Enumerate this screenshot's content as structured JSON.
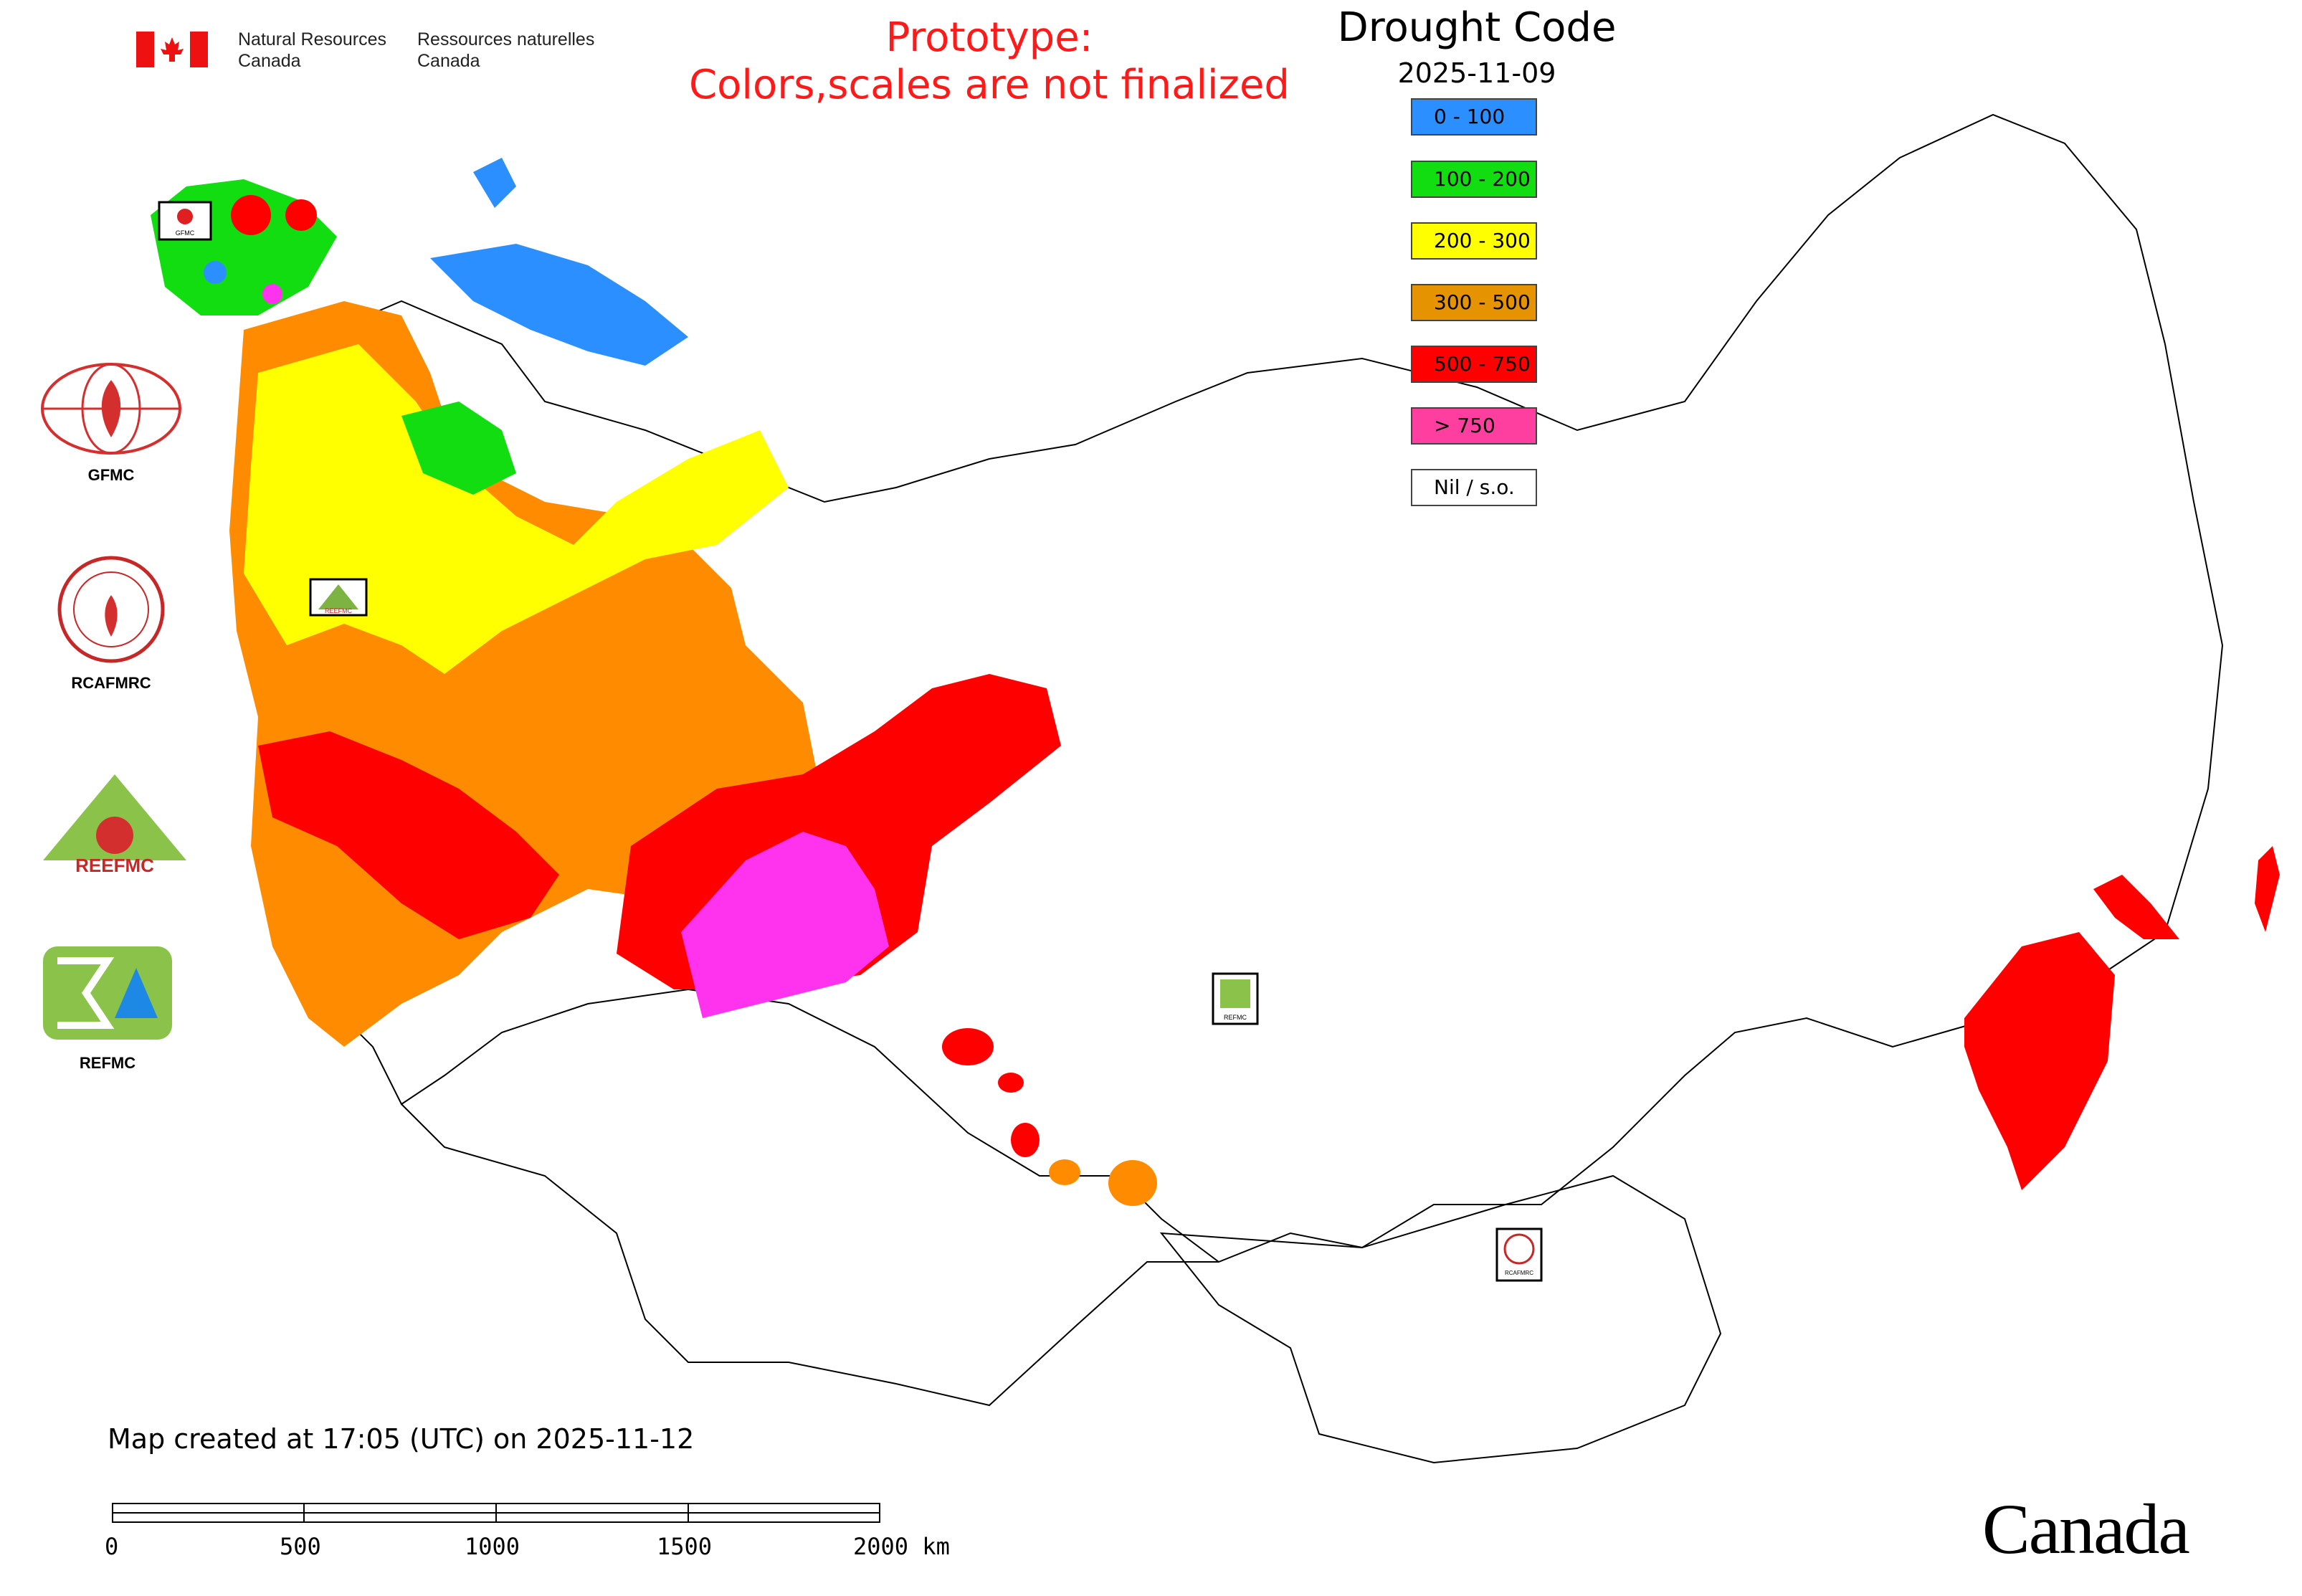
{
  "header": {
    "org_en": "Natural Resources\nCanada",
    "org_fr": "Ressources naturelles\nCanada"
  },
  "prototype_notice": {
    "line1": "Prototype:",
    "line2": "Colors,scales are not finalized"
  },
  "legend": {
    "title": "Drought Code",
    "date": "2025-11-09",
    "items": [
      {
        "label": "0 - 100",
        "color": "#2b8fff"
      },
      {
        "label": "100 - 200",
        "color": "#11dd11"
      },
      {
        "label": "200 - 300",
        "color": "#ffff00"
      },
      {
        "label": "300 - 500",
        "color": "#e59400"
      },
      {
        "label": "500 - 750",
        "color": "#ff0000"
      },
      {
        "label": "> 750",
        "color": "#ff3fa0"
      },
      {
        "label": "Nil / s.o.",
        "color": "#ffffff"
      }
    ]
  },
  "left_logos": [
    {
      "name": "GFMC",
      "icon": "gfmc-logo-icon"
    },
    {
      "name": "RCAFMRC",
      "icon": "rcafmrc-logo-icon"
    },
    {
      "name": "REEFMC",
      "icon": "reefmc-logo-icon"
    },
    {
      "name": "REFMC",
      "icon": "refmc-logo-icon"
    }
  ],
  "map_logo_tags": {
    "gfmc": "GFMC",
    "reefmc": "REEFMC",
    "refmc": "REFMC",
    "rcafmrc": "RCAFMRC"
  },
  "map_colors": {
    "blue": "#2b8fff",
    "green": "#11dd11",
    "yellow": "#ffff00",
    "orange": "#ff8c00",
    "red": "#ff0000",
    "magenta": "#ff33ee"
  },
  "footer": {
    "created": "Map created at 17:05 (UTC) on 2025-11-12",
    "scale_labels": [
      "0",
      "500",
      "1000",
      "1500",
      "2000 km"
    ],
    "wordmark": "Canada"
  }
}
